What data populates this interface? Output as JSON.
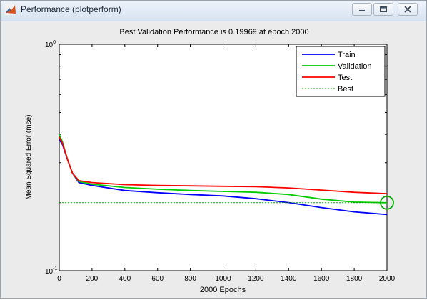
{
  "window": {
    "title": "Performance (plotperform)",
    "buttons": [
      "minimize",
      "maximize",
      "close"
    ]
  },
  "chart_data": {
    "type": "line",
    "title": "Best Validation Performance is 0.19969 at epoch 2000",
    "xlabel": "2000 Epochs",
    "ylabel": "Mean Squared Error  (mse)",
    "xlim": [
      0,
      2000
    ],
    "ylim": [
      0.1,
      1
    ],
    "yscale": "log",
    "x_ticks": [
      "0",
      "200",
      "400",
      "600",
      "800",
      "1000",
      "1200",
      "1400",
      "1600",
      "1800",
      "2000"
    ],
    "y_tick_major": [
      {
        "base": "10",
        "exp": "0",
        "value": 1
      },
      {
        "base": "10",
        "exp": "-1",
        "value": 0.1
      }
    ],
    "legend_position": "top-right",
    "grid": false,
    "series": [
      {
        "name": "Train",
        "color": "#0000ff",
        "style": "solid",
        "points": [
          [
            0,
            0.38
          ],
          [
            20,
            0.36
          ],
          [
            50,
            0.31
          ],
          [
            80,
            0.27
          ],
          [
            120,
            0.245
          ],
          [
            200,
            0.238
          ],
          [
            400,
            0.226
          ],
          [
            600,
            0.221
          ],
          [
            800,
            0.217
          ],
          [
            1000,
            0.214
          ],
          [
            1200,
            0.208
          ],
          [
            1400,
            0.2
          ],
          [
            1600,
            0.19
          ],
          [
            1800,
            0.182
          ],
          [
            2000,
            0.177
          ]
        ]
      },
      {
        "name": "Validation",
        "color": "#00cc00",
        "style": "solid",
        "points": [
          [
            0,
            0.4
          ],
          [
            20,
            0.37
          ],
          [
            50,
            0.31
          ],
          [
            80,
            0.27
          ],
          [
            120,
            0.248
          ],
          [
            200,
            0.241
          ],
          [
            400,
            0.233
          ],
          [
            600,
            0.229
          ],
          [
            800,
            0.226
          ],
          [
            1000,
            0.224
          ],
          [
            1200,
            0.222
          ],
          [
            1400,
            0.217
          ],
          [
            1600,
            0.207
          ],
          [
            1800,
            0.201
          ],
          [
            2000,
            0.1997
          ]
        ]
      },
      {
        "name": "Test",
        "color": "#ff0000",
        "style": "solid",
        "points": [
          [
            0,
            0.39
          ],
          [
            20,
            0.365
          ],
          [
            50,
            0.31
          ],
          [
            80,
            0.27
          ],
          [
            120,
            0.25
          ],
          [
            200,
            0.245
          ],
          [
            400,
            0.24
          ],
          [
            600,
            0.238
          ],
          [
            800,
            0.237
          ],
          [
            1000,
            0.236
          ],
          [
            1200,
            0.235
          ],
          [
            1400,
            0.232
          ],
          [
            1600,
            0.227
          ],
          [
            1800,
            0.222
          ],
          [
            2000,
            0.219
          ]
        ]
      },
      {
        "name": "Best",
        "color": "#00aa00",
        "style": "dotted",
        "points": [
          [
            0,
            0.1997
          ],
          [
            2000,
            0.1997
          ]
        ]
      }
    ],
    "best_point": {
      "x": 2000,
      "y": 0.1997,
      "color": "#00aa00"
    }
  }
}
